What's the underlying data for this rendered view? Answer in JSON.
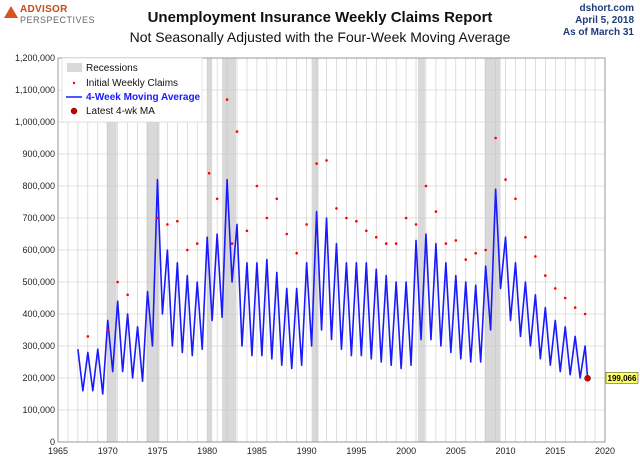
{
  "logo": {
    "line1": "ADVISOR",
    "line2": "PERSPECTIVES"
  },
  "source": {
    "site": "dshort.com",
    "date": "April 5, 2018",
    "asof": "As of March 31"
  },
  "chart_data": {
    "type": "line",
    "title": "Unemployment Insurance Weekly Claims Report",
    "subtitle": "Not Seasonally Adjusted with the Four-Week Moving Average",
    "xlim": [
      1965,
      2020
    ],
    "ylim": [
      0,
      1200000
    ],
    "x_ticks": [
      1965,
      1970,
      1975,
      1980,
      1985,
      1990,
      1995,
      2000,
      2005,
      2010,
      2015,
      2020
    ],
    "y_ticks": [
      0,
      100000,
      200000,
      300000,
      400000,
      500000,
      600000,
      700000,
      800000,
      900000,
      1000000,
      1100000,
      1200000
    ],
    "y_tick_labels": [
      "0",
      "100,000",
      "200,000",
      "300,000",
      "400,000",
      "500,000",
      "600,000",
      "700,000",
      "800,000",
      "900,000",
      "1,000,000",
      "1,100,000",
      "1,200,000"
    ],
    "grid": true,
    "legend_position": "top-left",
    "legend": [
      "Recessions",
      "Initial Weekly Claims",
      "4-Week Moving Average",
      "Latest 4-wk MA"
    ],
    "recessions": [
      [
        1969.9,
        1970.9
      ],
      [
        1973.9,
        1975.2
      ],
      [
        1980.0,
        1980.5
      ],
      [
        1981.5,
        1982.9
      ],
      [
        1990.5,
        1991.2
      ],
      [
        2001.2,
        2001.9
      ],
      [
        2007.9,
        2009.5
      ]
    ],
    "series": [
      {
        "name": "4-Week Moving Average",
        "color": "#1a1aff",
        "x": [
          1967.0,
          1967.5,
          1968.0,
          1968.5,
          1969.0,
          1969.5,
          1970.0,
          1970.5,
          1971.0,
          1971.5,
          1972.0,
          1972.5,
          1973.0,
          1973.5,
          1974.0,
          1974.5,
          1975.0,
          1975.5,
          1976.0,
          1976.5,
          1977.0,
          1977.5,
          1978.0,
          1978.5,
          1979.0,
          1979.5,
          1980.0,
          1980.5,
          1981.0,
          1981.5,
          1982.0,
          1982.5,
          1983.0,
          1983.5,
          1984.0,
          1984.5,
          1985.0,
          1985.5,
          1986.0,
          1986.5,
          1987.0,
          1987.5,
          1988.0,
          1988.5,
          1989.0,
          1989.5,
          1990.0,
          1990.5,
          1991.0,
          1991.5,
          1992.0,
          1992.5,
          1993.0,
          1993.5,
          1994.0,
          1994.5,
          1995.0,
          1995.5,
          1996.0,
          1996.5,
          1997.0,
          1997.5,
          1998.0,
          1998.5,
          1999.0,
          1999.5,
          2000.0,
          2000.5,
          2001.0,
          2001.5,
          2002.0,
          2002.5,
          2003.0,
          2003.5,
          2004.0,
          2004.5,
          2005.0,
          2005.5,
          2006.0,
          2006.5,
          2007.0,
          2007.5,
          2008.0,
          2008.5,
          2009.0,
          2009.5,
          2010.0,
          2010.5,
          2011.0,
          2011.5,
          2012.0,
          2012.5,
          2013.0,
          2013.5,
          2014.0,
          2014.5,
          2015.0,
          2015.5,
          2016.0,
          2016.5,
          2017.0,
          2017.5,
          2018.0,
          2018.25
        ],
        "values": [
          290000,
          160000,
          280000,
          160000,
          290000,
          150000,
          380000,
          220000,
          440000,
          220000,
          400000,
          200000,
          360000,
          190000,
          470000,
          300000,
          820000,
          400000,
          600000,
          300000,
          560000,
          280000,
          520000,
          270000,
          500000,
          290000,
          640000,
          380000,
          650000,
          390000,
          820000,
          500000,
          680000,
          300000,
          560000,
          270000,
          560000,
          270000,
          570000,
          260000,
          530000,
          240000,
          480000,
          230000,
          480000,
          240000,
          560000,
          300000,
          720000,
          350000,
          700000,
          320000,
          620000,
          290000,
          560000,
          270000,
          560000,
          270000,
          560000,
          260000,
          540000,
          250000,
          520000,
          240000,
          500000,
          230000,
          500000,
          240000,
          630000,
          320000,
          650000,
          320000,
          620000,
          300000,
          560000,
          280000,
          520000,
          260000,
          500000,
          250000,
          490000,
          250000,
          550000,
          350000,
          790000,
          480000,
          640000,
          380000,
          560000,
          330000,
          500000,
          300000,
          460000,
          260000,
          420000,
          240000,
          380000,
          220000,
          360000,
          210000,
          330000,
          200000,
          300000,
          199066
        ]
      },
      {
        "name": "Initial Weekly Claims",
        "color": "#ff0000",
        "type": "scatter",
        "x": [
          1968.0,
          1970.0,
          1971.0,
          1972.0,
          1975.0,
          1976.0,
          1977.0,
          1978.0,
          1979.0,
          1980.2,
          1981.0,
          1982.0,
          1982.5,
          1983.0,
          1984.0,
          1985.0,
          1986.0,
          1987.0,
          1988.0,
          1989.0,
          1990.0,
          1991.0,
          1992.0,
          1993.0,
          1994.0,
          1995.0,
          1996.0,
          1997.0,
          1998.0,
          1999.0,
          2000.0,
          2001.0,
          2002.0,
          2003.0,
          2004.0,
          2005.0,
          2006.0,
          2007.0,
          2008.0,
          2009.0,
          2010.0,
          2011.0,
          2012.0,
          2013.0,
          2014.0,
          2015.0,
          2016.0,
          2017.0,
          2018.0
        ],
        "values": [
          330000,
          350000,
          500000,
          460000,
          700000,
          680000,
          690000,
          600000,
          620000,
          840000,
          760000,
          1070000,
          620000,
          970000,
          660000,
          800000,
          700000,
          760000,
          650000,
          590000,
          680000,
          870000,
          880000,
          730000,
          700000,
          690000,
          660000,
          640000,
          620000,
          620000,
          700000,
          680000,
          800000,
          720000,
          620000,
          630000,
          570000,
          590000,
          600000,
          950000,
          820000,
          760000,
          640000,
          580000,
          520000,
          480000,
          450000,
          420000,
          400000
        ]
      }
    ],
    "latest_ma": {
      "x": 2018.25,
      "value": 199066,
      "label": "199,066"
    }
  }
}
